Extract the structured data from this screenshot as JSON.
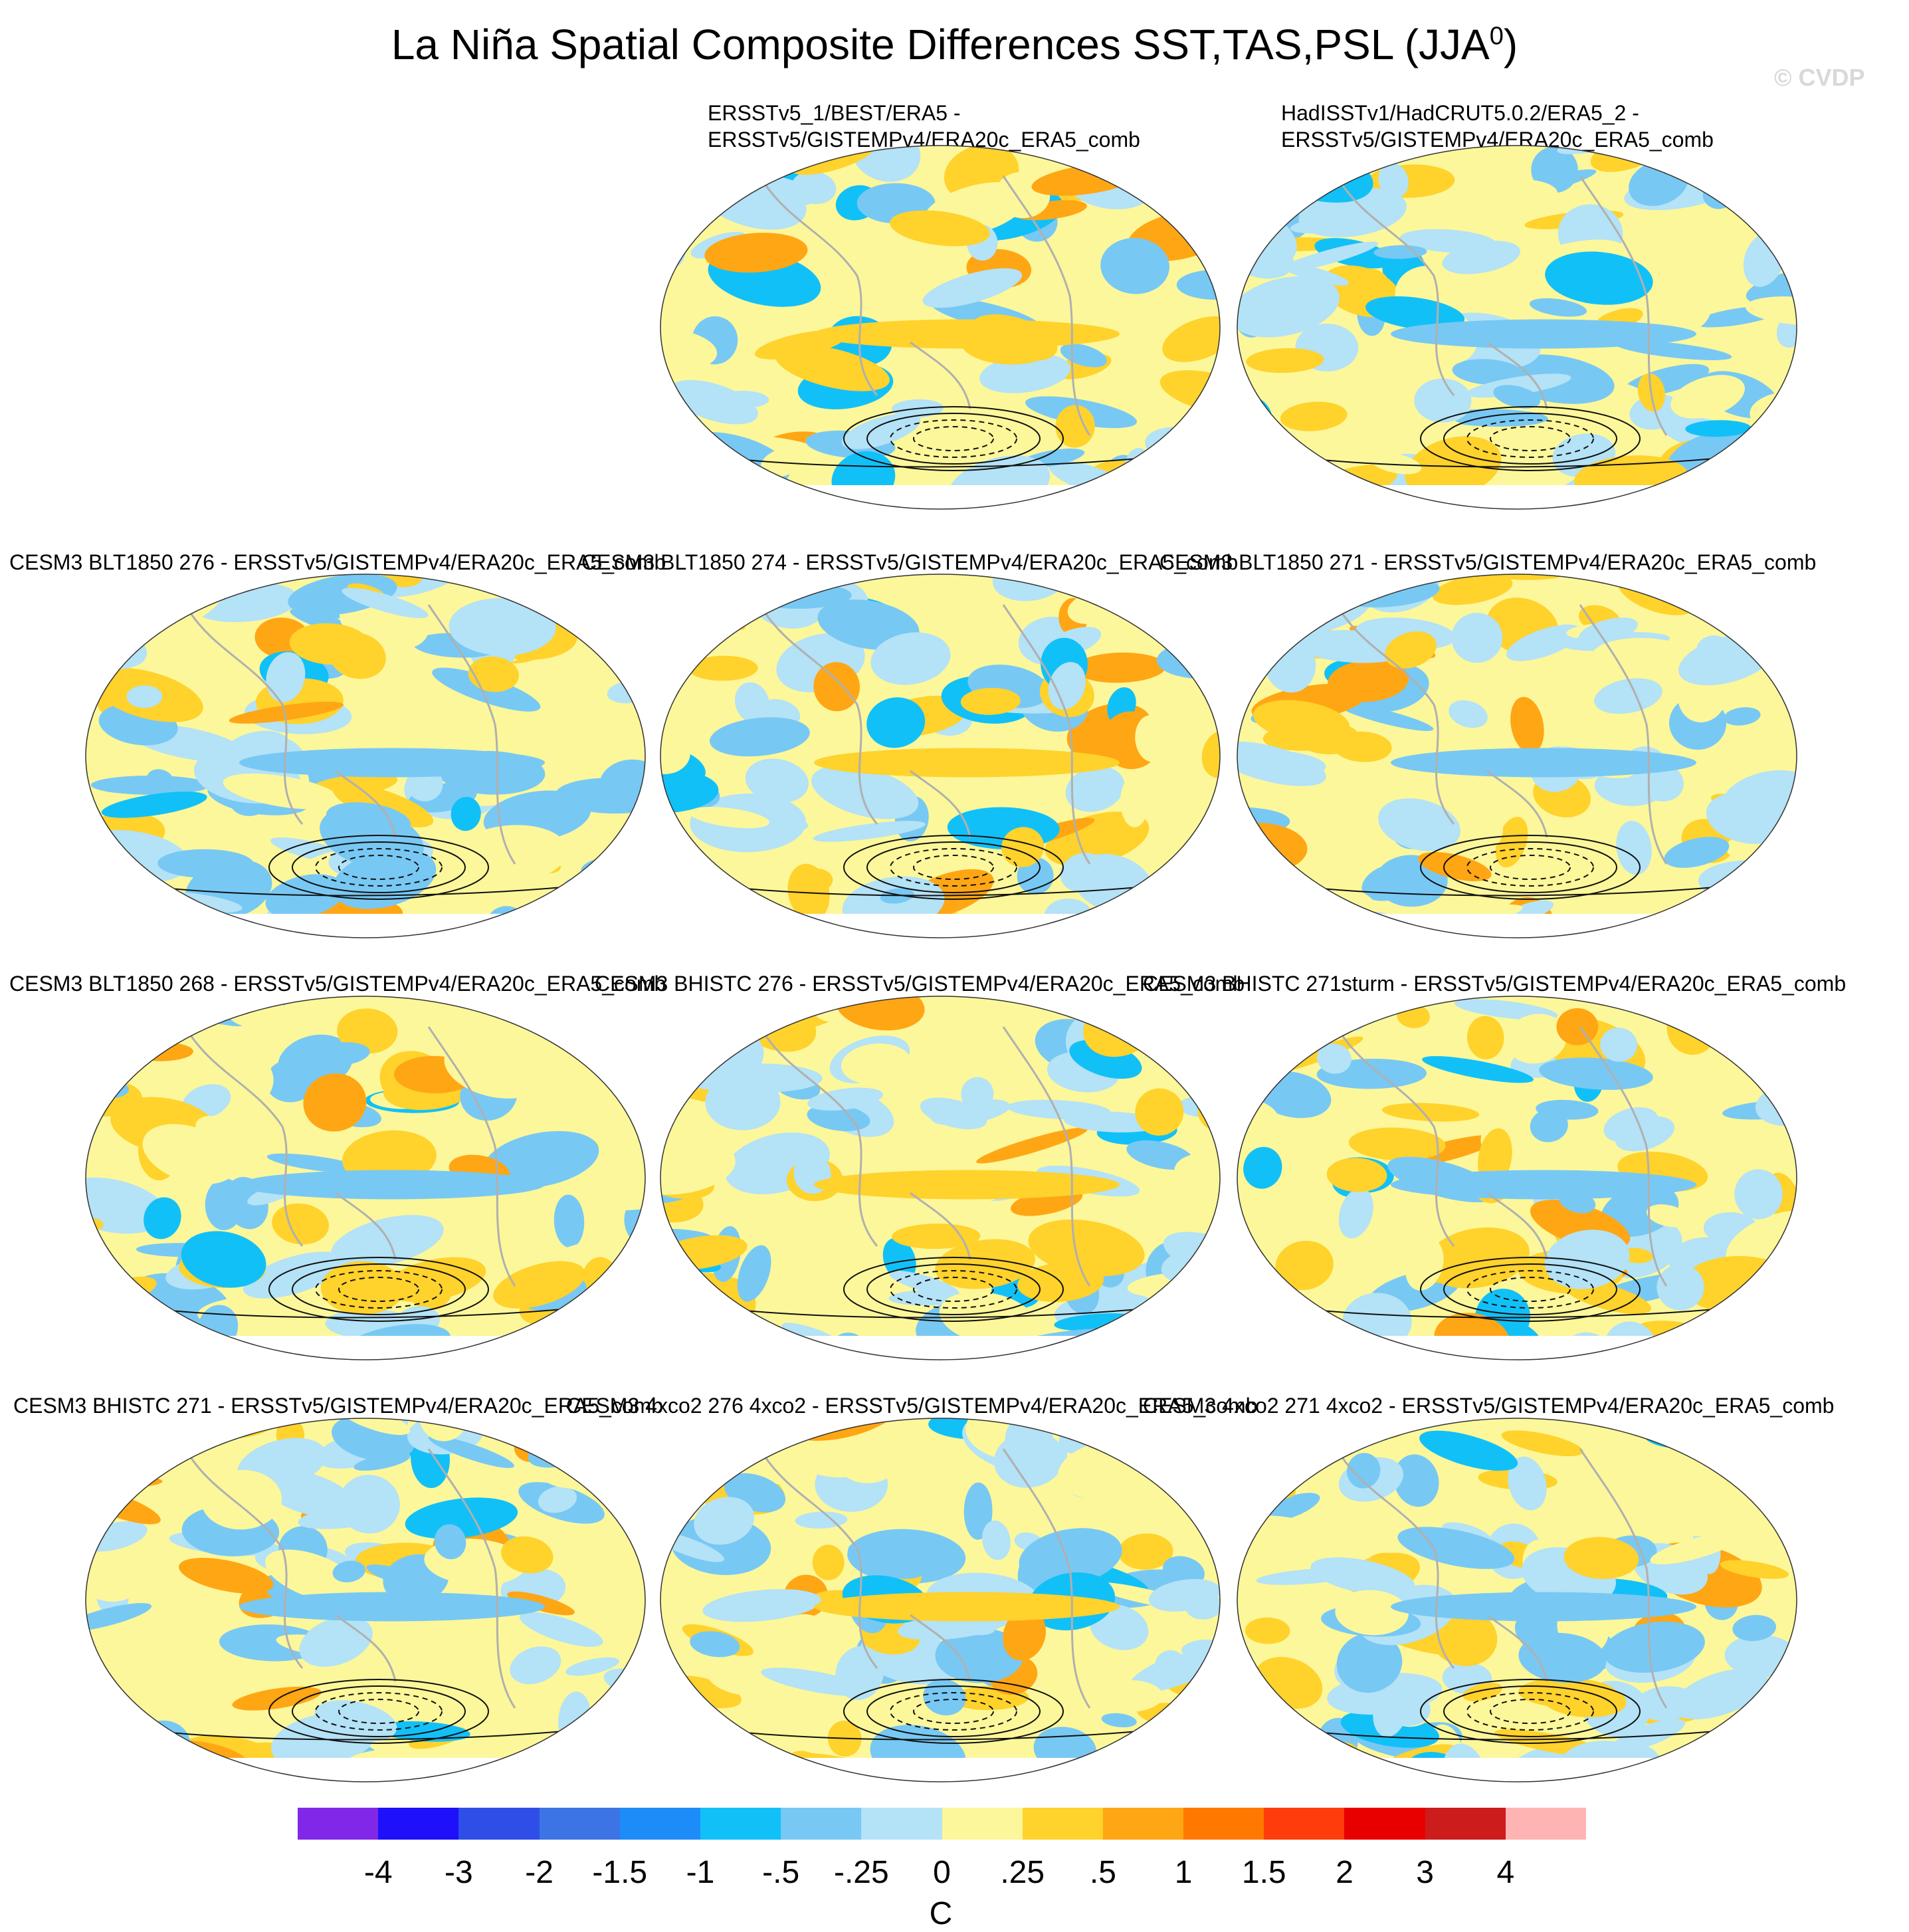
{
  "chart_data": {
    "type": "heatmap",
    "title_main": "La Niña Spatial Composite Differences SST,TAS,PSL (JJA",
    "title_sup": "0",
    "title_close": ")",
    "watermark": "© CVDP",
    "colorbar": {
      "units": "C",
      "tick_labels": [
        "-4",
        "-3",
        "-2",
        "-1.5",
        "-1",
        "-.5",
        "-.25",
        "0",
        ".25",
        ".5",
        "1",
        "1.5",
        "2",
        "3",
        "4"
      ],
      "colors": [
        "#8128e8",
        "#1e10f8",
        "#2f4ee8",
        "#3c74e6",
        "#1e8cf8",
        "#12c0f8",
        "#78c8f4",
        "#b4e2f6",
        "#fcf79a",
        "#ffd22c",
        "#ffa614",
        "#ff7800",
        "#ff3c0c",
        "#e80000",
        "#cc1c1c",
        "#ffb4b4"
      ]
    },
    "panels": [
      {
        "title": "ERSSTv5_1/BEST/ERA5 -\nERSSTv5/GISTEMPv4/ERA20c_ERA5_comb"
      },
      {
        "title": "HadISSTv1/HadCRUT5.0.2/ERA5_2 -\nERSSTv5/GISTEMPv4/ERA20c_ERA5_comb"
      },
      {
        "title": "CESM3 BLT1850 276 - ERSSTv5/GISTEMPv4/ERA20c_ERA5_comb"
      },
      {
        "title": "CESM3 BLT1850 274 - ERSSTv5/GISTEMPv4/ERA20c_ERA5_comb"
      },
      {
        "title": "CESM3 BLT1850 271 - ERSSTv5/GISTEMPv4/ERA20c_ERA5_comb"
      },
      {
        "title": "CESM3 BLT1850 268 - ERSSTv5/GISTEMPv4/ERA20c_ERA5_comb"
      },
      {
        "title": "CESM3 BHISTC 276 - ERSSTv5/GISTEMPv4/ERA20c_ERA5_comb"
      },
      {
        "title": "CESM3 BHISTC 271sturm - ERSSTv5/GISTEMPv4/ERA20c_ERA5_comb"
      },
      {
        "title": "CESM3 BHISTC 271 - ERSSTv5/GISTEMPv4/ERA20c_ERA5_comb"
      },
      {
        "title": "CESM3 4xco2 276 4xco2 - ERSSTv5/GISTEMPv4/ERA20c_ERA5_comb"
      },
      {
        "title": "CESM3 4xco2 271 4xco2 - ERSSTv5/GISTEMPv4/ERA20c_ERA5_comb"
      }
    ]
  }
}
